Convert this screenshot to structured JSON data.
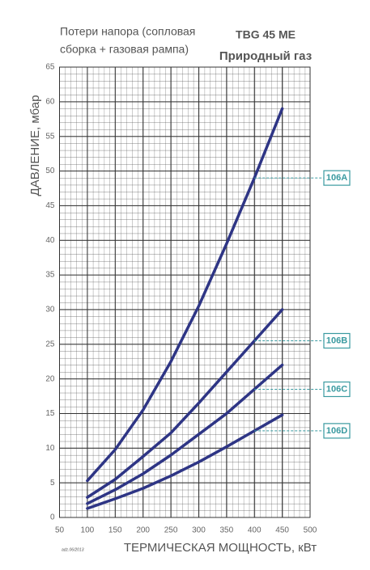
{
  "chart_data": {
    "type": "line",
    "title": [
      "TBG 45 ME",
      "Природный газ"
    ],
    "subtitle": [
      "Потери напора (сопловая",
      "сборка + газовая рампа)"
    ],
    "y_label": "ДАВЛЕНИЕ, мбар",
    "x_label": "ТЕРМИЧЕСКАЯ МОЩНОСТЬ, кВт",
    "note": "adz.06/2013",
    "x": [
      100,
      150,
      200,
      250,
      300,
      350,
      400,
      450
    ],
    "series": [
      {
        "name": "106A",
        "color": "#2e3585",
        "values": [
          5.3,
          9.8,
          15.5,
          22.5,
          30.5,
          39.5,
          49,
          59
        ]
      },
      {
        "name": "106B",
        "color": "#2e3585",
        "values": [
          2.9,
          5.5,
          8.8,
          12.2,
          16.5,
          21,
          25.5,
          30
        ]
      },
      {
        "name": "106C",
        "color": "#2e3585",
        "values": [
          2,
          4,
          6.3,
          9,
          12,
          15,
          18.5,
          22
        ]
      },
      {
        "name": "106D",
        "color": "#2e3585",
        "values": [
          1.3,
          2.7,
          4.2,
          6,
          8,
          10.2,
          12.5,
          14.8
        ]
      }
    ],
    "label_color": "#3a9aa0",
    "xlim": [
      50,
      500
    ],
    "xticks": [
      50,
      100,
      150,
      200,
      250,
      300,
      350,
      400,
      450,
      500
    ],
    "ylim": [
      0,
      65
    ],
    "yticks": [
      0,
      5,
      10,
      15,
      20,
      25,
      30,
      35,
      40,
      45,
      50,
      55,
      60,
      65
    ],
    "grid": true
  }
}
